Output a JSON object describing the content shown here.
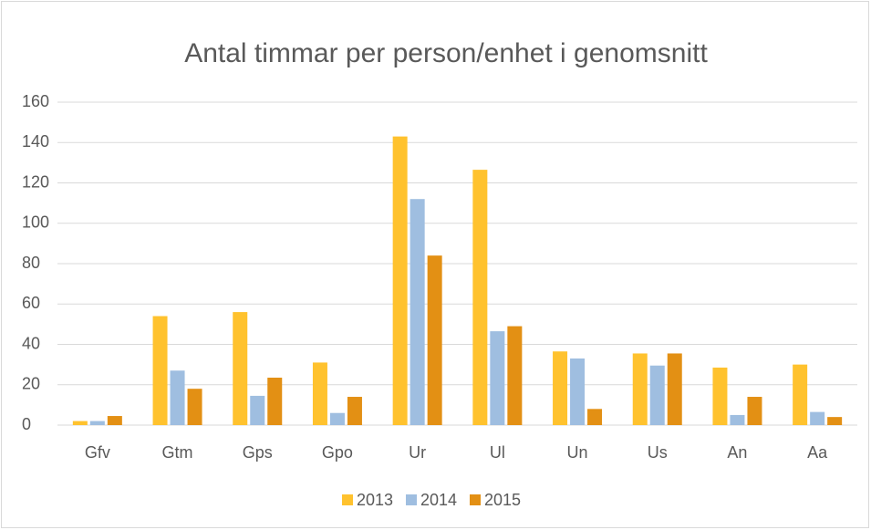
{
  "chart_data": {
    "type": "bar",
    "title": "Antal timmar per person/enhet i genomsnitt",
    "categories": [
      "Gfv",
      "Gtm",
      "Gps",
      "Gpo",
      "Ur",
      "Ul",
      "Un",
      "Us",
      "An",
      "Aa"
    ],
    "series": [
      {
        "name": "2013",
        "color": "#ffc22e",
        "values": [
          2,
          54,
          56,
          31,
          143,
          126.5,
          36.5,
          35.5,
          28.5,
          30
        ]
      },
      {
        "name": "2014",
        "color": "#9fbee0",
        "values": [
          2,
          27,
          14.5,
          6,
          112,
          46.5,
          33,
          29.5,
          5,
          6.5
        ]
      },
      {
        "name": "2015",
        "color": "#e39014",
        "values": [
          4.5,
          18,
          23.5,
          14,
          84,
          49,
          8,
          35.5,
          14,
          4
        ]
      }
    ],
    "ylim": [
      0,
      160
    ],
    "yticks": [
      0,
      20,
      40,
      60,
      80,
      100,
      120,
      140,
      160
    ],
    "grid": true,
    "legend": "bottom"
  }
}
